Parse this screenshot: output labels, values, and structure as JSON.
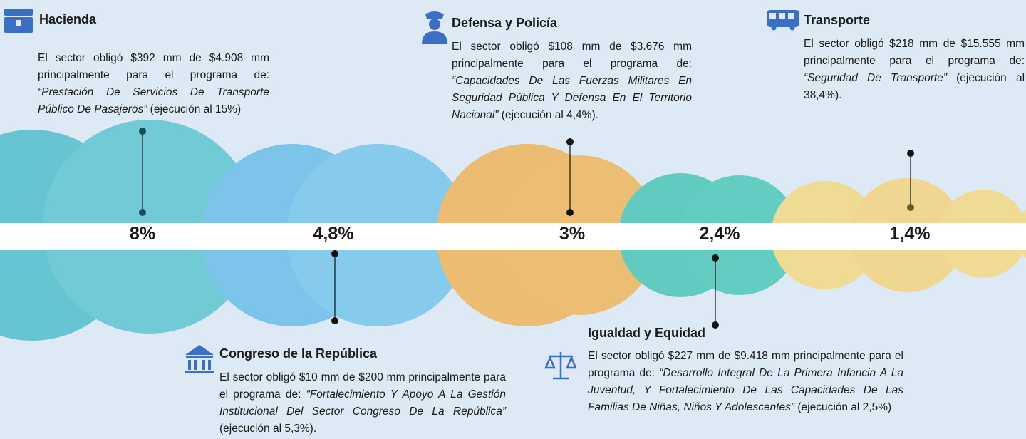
{
  "sections": [
    {
      "title": "Hacienda",
      "percent": "8%",
      "intro": "El sector obligó $392 mm de $4.908 mm principalmente para el programa de: ",
      "program": "“Prestación De Servicios De Transporte Público De Pasajeros”",
      "closing": " (ejecución al 15%)"
    },
    {
      "title": "Congreso de la República",
      "percent": "4,8%",
      "intro": "El sector obligó $10 mm de $200 mm principalmente para el programa de: ",
      "program": "“Fortalecimiento Y Apoyo A La Gestión Institucional Del Sector Congreso De La República”",
      "closing": " (ejecución al 5,3%)."
    },
    {
      "title": "Defensa y Policía",
      "percent": "3%",
      "intro": "El sector obligó $108 mm de $3.676 mm principalmente para el programa de: ",
      "program": "“Capacidades De Las Fuerzas Militares En Seguridad Pública Y Defensa En El Territorio Nacional”",
      "closing": " (ejecución al 4,4%)."
    },
    {
      "title": "Igualdad y Equidad",
      "percent": "2,4%",
      "intro": "El sector obligó $227 mm de $9.418 mm principalmente para el programa de: ",
      "program": "“Desarrollo Integral De La Primera Infancia A La Juventud, Y Fortalecimiento De Las Capacidades De Las Familias De Niñas, Niños Y Adolescentes”",
      "closing": " (ejecución al 2,5%)"
    },
    {
      "title": "Transporte",
      "percent": "1,4%",
      "intro": "El sector obligó $218 mm de $15.555 mm principalmente para el programa de: ",
      "program": "“Seguridad De Transporte”",
      "closing": " (ejecución al 38,4%)."
    }
  ]
}
